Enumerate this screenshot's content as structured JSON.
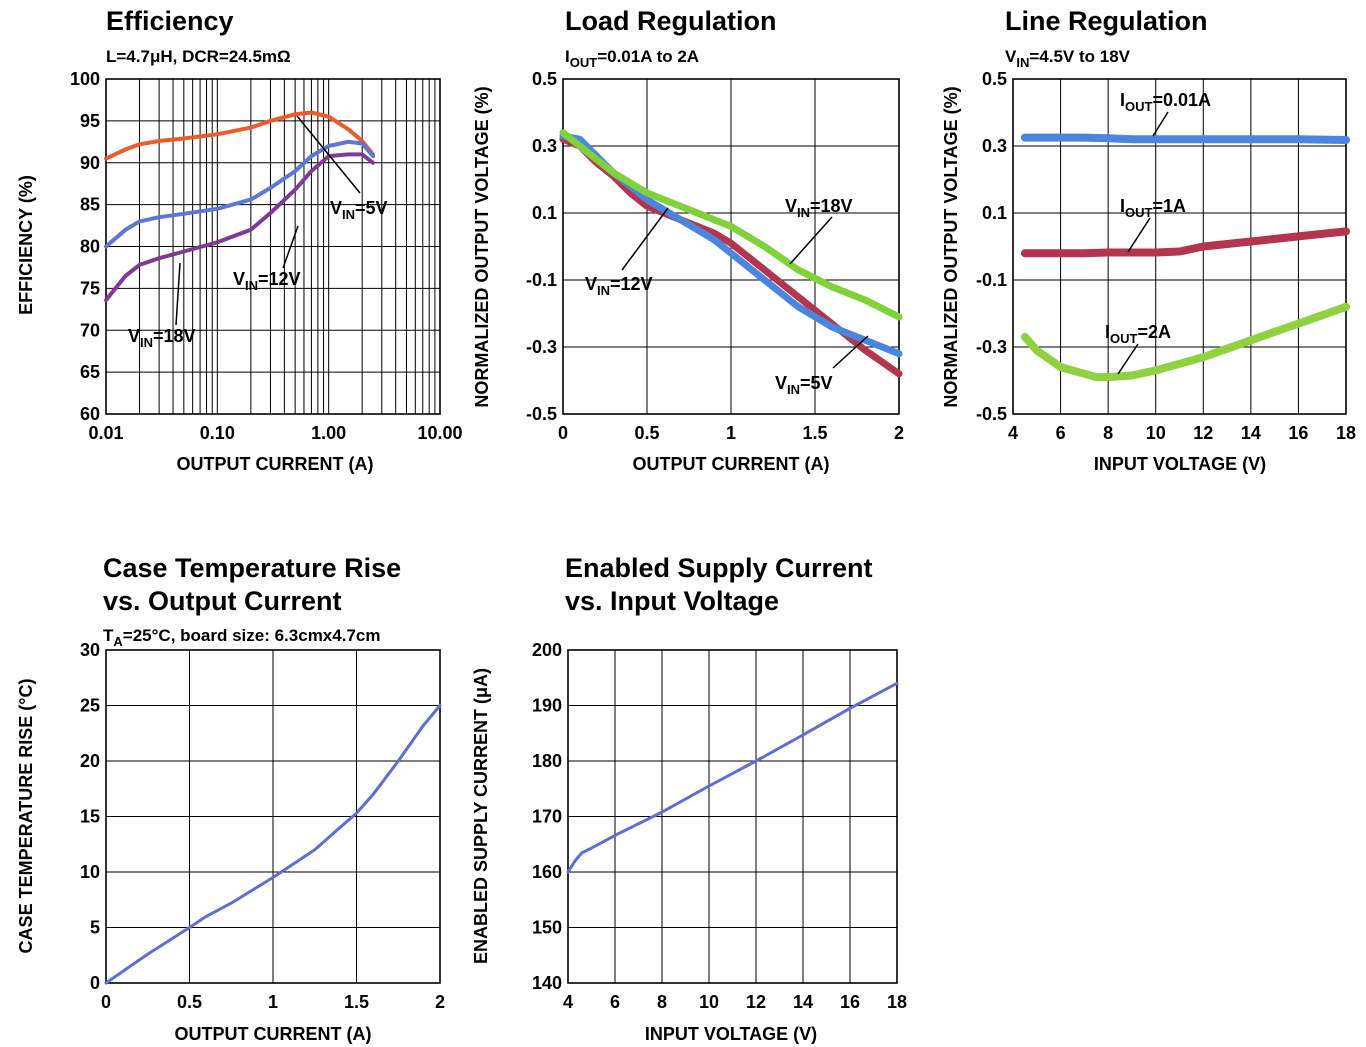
{
  "chart_data": [
    {
      "id": "efficiency",
      "type": "line",
      "title": "Efficiency",
      "subtitle": "L=4.7μH, DCR=24.5mΩ",
      "xlabel": "OUTPUT CURRENT (A)",
      "ylabel": "EFFICIENCY (%)",
      "xscale": "log",
      "xlim": [
        0.01,
        10
      ],
      "ylim": [
        60,
        100
      ],
      "xticks": [
        0.01,
        0.1,
        1,
        10
      ],
      "xtick_labels": [
        "0.01",
        "0.10",
        "1.00",
        "10.00"
      ],
      "yticks": [
        60,
        65,
        70,
        75,
        80,
        85,
        90,
        95,
        100
      ],
      "ytick_labels": [
        "60",
        "65",
        "70",
        "75",
        "80",
        "85",
        "90",
        "95",
        "100"
      ],
      "grid": true,
      "series": [
        {
          "name": "VIN=5V",
          "label_main": "V",
          "label_sub": "IN",
          "label_rest": "=5V",
          "color": "#f05a28",
          "x": [
            0.01,
            0.015,
            0.02,
            0.03,
            0.05,
            0.1,
            0.2,
            0.3,
            0.5,
            0.7,
            1.0,
            1.5,
            2.0,
            2.5
          ],
          "y": [
            90.5,
            91.6,
            92.2,
            92.6,
            92.9,
            93.4,
            94.2,
            95.0,
            95.8,
            96.0,
            95.5,
            94.0,
            92.6,
            91.0
          ]
        },
        {
          "name": "VIN=12V",
          "label_main": "V",
          "label_sub": "IN",
          "label_rest": "=12V",
          "color": "#5b77d9",
          "x": [
            0.01,
            0.015,
            0.02,
            0.03,
            0.05,
            0.1,
            0.2,
            0.3,
            0.5,
            0.7,
            1.0,
            1.5,
            2.0,
            2.5
          ],
          "y": [
            80.0,
            82.0,
            83.0,
            83.5,
            83.9,
            84.5,
            85.6,
            87.0,
            89.0,
            90.8,
            92.0,
            92.5,
            92.3,
            90.8
          ]
        },
        {
          "name": "VIN=18V",
          "label_main": "V",
          "label_sub": "IN",
          "label_rest": "=18V",
          "color": "#7f3a96",
          "x": [
            0.01,
            0.015,
            0.02,
            0.03,
            0.05,
            0.1,
            0.2,
            0.3,
            0.5,
            0.7,
            1.0,
            1.5,
            2.0,
            2.5
          ],
          "y": [
            73.6,
            76.5,
            77.8,
            78.6,
            79.4,
            80.5,
            82.0,
            84.0,
            86.8,
            89.0,
            90.8,
            91.0,
            91.0,
            90.0
          ]
        }
      ],
      "annotations": [
        {
          "text_main": "V",
          "text_sub": "IN",
          "text_rest": "=5V",
          "series": "VIN=5V"
        },
        {
          "text_main": "V",
          "text_sub": "IN",
          "text_rest": "=12V",
          "series": "VIN=12V"
        },
        {
          "text_main": "V",
          "text_sub": "IN",
          "text_rest": "=18V",
          "series": "VIN=18V"
        }
      ]
    },
    {
      "id": "load-regulation",
      "type": "line",
      "title": "Load Regulation",
      "subtitle_main": "I",
      "subtitle_sub": "OUT",
      "subtitle_rest": "=0.01A to 2A",
      "xlabel": "OUTPUT CURRENT (A)",
      "ylabel": "NORMALIZED OUTPUT VOLTAGE (%)",
      "xlim": [
        0,
        2
      ],
      "ylim": [
        -0.5,
        0.5
      ],
      "xticks": [
        0,
        0.5,
        1,
        1.5,
        2
      ],
      "xtick_labels": [
        "0",
        "0.5",
        "1",
        "1.5",
        "2"
      ],
      "yticks": [
        -0.5,
        -0.3,
        -0.1,
        0.1,
        0.3,
        0.5
      ],
      "ytick_labels": [
        "-0.5",
        "-0.3",
        "-0.1",
        "0.1",
        "0.3",
        "0.5"
      ],
      "grid": true,
      "series": [
        {
          "name": "VIN=5V",
          "color": "#b5354f",
          "x": [
            0,
            0.1,
            0.2,
            0.3,
            0.4,
            0.5,
            0.6,
            0.7,
            0.8,
            0.9,
            1.0,
            1.2,
            1.4,
            1.6,
            1.8,
            2.0
          ],
          "y": [
            0.32,
            0.3,
            0.25,
            0.21,
            0.16,
            0.12,
            0.1,
            0.08,
            0.06,
            0.04,
            0.01,
            -0.07,
            -0.15,
            -0.23,
            -0.31,
            -0.38
          ]
        },
        {
          "name": "VIN=12V",
          "color": "#4a86e0",
          "x": [
            0,
            0.1,
            0.2,
            0.3,
            0.4,
            0.5,
            0.6,
            0.7,
            0.8,
            0.9,
            1.0,
            1.2,
            1.4,
            1.6,
            1.8,
            2.0
          ],
          "y": [
            0.33,
            0.32,
            0.27,
            0.22,
            0.18,
            0.14,
            0.11,
            0.08,
            0.05,
            0.02,
            -0.02,
            -0.1,
            -0.18,
            -0.24,
            -0.28,
            -0.32
          ]
        },
        {
          "name": "VIN=18V",
          "color": "#7fd23a",
          "x": [
            0,
            0.1,
            0.2,
            0.3,
            0.4,
            0.5,
            0.6,
            0.7,
            0.8,
            0.9,
            1.0,
            1.2,
            1.4,
            1.6,
            1.8,
            2.0
          ],
          "y": [
            0.34,
            0.3,
            0.26,
            0.22,
            0.19,
            0.16,
            0.14,
            0.12,
            0.1,
            0.08,
            0.06,
            0.0,
            -0.07,
            -0.12,
            -0.16,
            -0.21
          ]
        }
      ],
      "annotations": [
        {
          "text_main": "V",
          "text_sub": "IN",
          "text_rest": "=18V",
          "series": "VIN=18V"
        },
        {
          "text_main": "V",
          "text_sub": "IN",
          "text_rest": "=12V",
          "series": "VIN=12V"
        },
        {
          "text_main": "V",
          "text_sub": "IN",
          "text_rest": "=5V",
          "series": "VIN=5V"
        }
      ]
    },
    {
      "id": "line-regulation",
      "type": "line",
      "title": "Line Regulation",
      "subtitle_main": "V",
      "subtitle_sub": "IN",
      "subtitle_rest": "=4.5V to 18V",
      "xlabel": "INPUT VOLTAGE (V)",
      "ylabel": "NORMALIZED OUTPUT VOLTAGE (%)",
      "xlim": [
        4,
        18
      ],
      "ylim": [
        -0.5,
        0.5
      ],
      "xticks": [
        4,
        6,
        8,
        10,
        12,
        14,
        16,
        18
      ],
      "xtick_labels": [
        "4",
        "6",
        "8",
        "10",
        "12",
        "14",
        "16",
        "18"
      ],
      "yticks": [
        -0.5,
        -0.3,
        -0.1,
        0.1,
        0.3,
        0.5
      ],
      "ytick_labels": [
        "-0.5",
        "-0.3",
        "-0.1",
        "0.1",
        "0.3",
        "0.5"
      ],
      "grid": true,
      "series": [
        {
          "name": "IOUT=0.01A",
          "color": "#4a86e0",
          "x": [
            4.5,
            6,
            7,
            8,
            9,
            10,
            11,
            12,
            14,
            16,
            18
          ],
          "y": [
            0.325,
            0.325,
            0.325,
            0.323,
            0.32,
            0.32,
            0.32,
            0.32,
            0.32,
            0.32,
            0.318
          ]
        },
        {
          "name": "IOUT=1A",
          "color": "#b5354f",
          "x": [
            4.5,
            6,
            7,
            8,
            9,
            10,
            11,
            12,
            14,
            16,
            18
          ],
          "y": [
            -0.02,
            -0.02,
            -0.02,
            -0.018,
            -0.018,
            -0.018,
            -0.015,
            0.0,
            0.015,
            0.03,
            0.045
          ]
        },
        {
          "name": "IOUT=2A",
          "color": "#8fd13f",
          "x": [
            4.5,
            5,
            6,
            7,
            7.5,
            8,
            9,
            10,
            11,
            12,
            13,
            14,
            15,
            16,
            17,
            18
          ],
          "y": [
            -0.27,
            -0.31,
            -0.36,
            -0.38,
            -0.39,
            -0.39,
            -0.385,
            -0.37,
            -0.35,
            -0.33,
            -0.305,
            -0.28,
            -0.255,
            -0.23,
            -0.205,
            -0.18
          ]
        }
      ],
      "annotations": [
        {
          "text_main": "I",
          "text_sub": "OUT",
          "text_rest": "=0.01A",
          "series": "IOUT=0.01A"
        },
        {
          "text_main": "I",
          "text_sub": "OUT",
          "text_rest": "=1A",
          "series": "IOUT=1A"
        },
        {
          "text_main": "I",
          "text_sub": "OUT",
          "text_rest": "=2A",
          "series": "IOUT=2A"
        }
      ]
    },
    {
      "id": "case-temperature",
      "type": "line",
      "title_line1": "Case Temperature Rise",
      "title_line2": "vs. Output Current",
      "subtitle_main": "T",
      "subtitle_sub": "A",
      "subtitle_rest": "=25°C, board size: 6.3cmx4.7cm",
      "xlabel": "OUTPUT CURRENT (A)",
      "ylabel": "CASE TEMPERATURE RISE (°C)",
      "xlim": [
        0,
        2
      ],
      "ylim": [
        0,
        30
      ],
      "xticks": [
        0,
        0.5,
        1,
        1.5,
        2
      ],
      "xtick_labels": [
        "0",
        "0.5",
        "1",
        "1.5",
        "2"
      ],
      "yticks": [
        0,
        5,
        10,
        15,
        20,
        25,
        30
      ],
      "ytick_labels": [
        "0",
        "5",
        "10",
        "15",
        "20",
        "25",
        "30"
      ],
      "grid": true,
      "series": [
        {
          "color": "#5b6fd4",
          "x": [
            0,
            0.25,
            0.5,
            0.6,
            0.75,
            1.0,
            1.25,
            1.4,
            1.5,
            1.6,
            1.75,
            1.9,
            2.0
          ],
          "y": [
            0,
            2.6,
            5.0,
            6.0,
            7.2,
            9.5,
            12.0,
            14.0,
            15.3,
            17.0,
            20.0,
            23.2,
            25.0
          ]
        }
      ]
    },
    {
      "id": "supply-current",
      "type": "line",
      "title_line1": "Enabled Supply Current",
      "title_line2": "vs. Input Voltage",
      "xlabel": "INPUT VOLTAGE (V)",
      "ylabel": "ENABLED SUPPLY CURRENT (μA)",
      "xlim": [
        4,
        18
      ],
      "ylim": [
        140,
        200
      ],
      "xticks": [
        4,
        6,
        8,
        10,
        12,
        14,
        16,
        18
      ],
      "xtick_labels": [
        "4",
        "6",
        "8",
        "10",
        "12",
        "14",
        "16",
        "18"
      ],
      "yticks": [
        140,
        150,
        160,
        170,
        180,
        190,
        200
      ],
      "ytick_labels": [
        "140",
        "150",
        "160",
        "170",
        "180",
        "190",
        "200"
      ],
      "grid": true,
      "series": [
        {
          "color": "#5b6fd4",
          "x": [
            4,
            4.3,
            4.6,
            5,
            6,
            8,
            10,
            12,
            14,
            16,
            18
          ],
          "y": [
            160,
            162,
            163.5,
            164.3,
            166.6,
            170.8,
            175.5,
            180.0,
            184.7,
            189.5,
            194.0
          ]
        }
      ]
    }
  ]
}
